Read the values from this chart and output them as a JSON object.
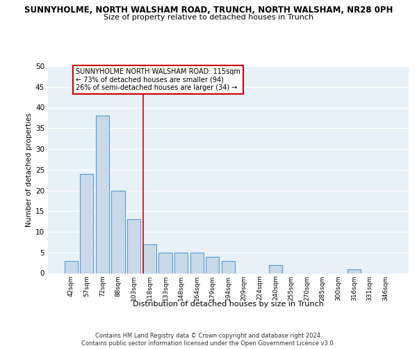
{
  "title1": "SUNNYHOLME, NORTH WALSHAM ROAD, TRUNCH, NORTH WALSHAM, NR28 0PH",
  "title2": "Size of property relative to detached houses in Trunch",
  "xlabel": "Distribution of detached houses by size in Trunch",
  "ylabel": "Number of detached properties",
  "categories": [
    "42sqm",
    "57sqm",
    "72sqm",
    "88sqm",
    "103sqm",
    "118sqm",
    "133sqm",
    "148sqm",
    "164sqm",
    "179sqm",
    "194sqm",
    "209sqm",
    "224sqm",
    "240sqm",
    "255sqm",
    "270sqm",
    "285sqm",
    "300sqm",
    "316sqm",
    "331sqm",
    "346sqm"
  ],
  "values": [
    3,
    24,
    38,
    20,
    13,
    7,
    5,
    5,
    5,
    4,
    3,
    0,
    0,
    2,
    0,
    0,
    0,
    0,
    1,
    0,
    0
  ],
  "bar_color": "#c9d9e8",
  "bar_edge_color": "#5b9bd5",
  "background_color": "#e8f0f8",
  "grid_color": "#ffffff",
  "annotation_text_line1": "SUNNYHOLME NORTH WALSHAM ROAD: 115sqm",
  "annotation_text_line2": "← 73% of detached houses are smaller (94)",
  "annotation_text_line3": "26% of semi-detached houses are larger (34) →",
  "annotation_box_color": "#ffffff",
  "annotation_box_edge_color": "#cc0000",
  "vline_x": 4.57,
  "vline_color": "#cc0000",
  "footer": "Contains HM Land Registry data © Crown copyright and database right 2024.\nContains public sector information licensed under the Open Government Licence v3.0.",
  "ylim": [
    0,
    50
  ],
  "yticks": [
    0,
    5,
    10,
    15,
    20,
    25,
    30,
    35,
    40,
    45,
    50
  ]
}
